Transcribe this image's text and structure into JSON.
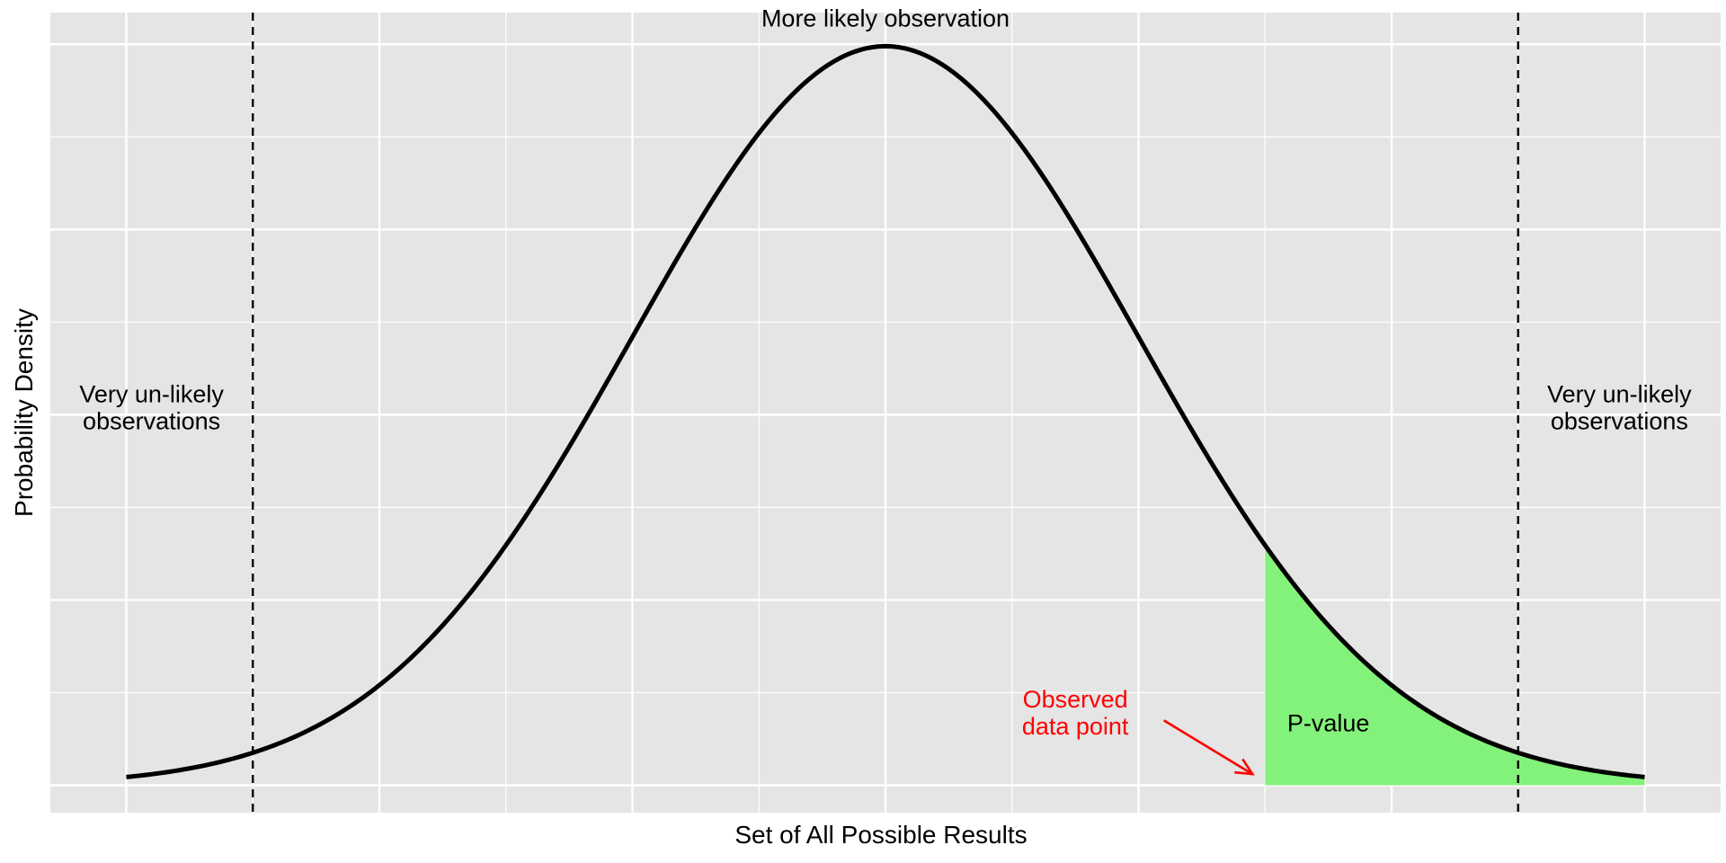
{
  "chart_data": {
    "type": "area",
    "title": "",
    "xlabel": "Set of All Possible Results",
    "ylabel": "Probability Density",
    "xlim": [
      -3.3,
      3.3
    ],
    "ylim": [
      -0.0148,
      0.4171
    ],
    "grid": true,
    "legend": "none",
    "background": "#e5e5e5",
    "grid_color": "#ffffff",
    "series": [
      {
        "kind": "normal-density",
        "mean": 0,
        "sd": 1,
        "x_range": [
          -3,
          3
        ],
        "color": "#000000"
      }
    ],
    "shaded_region": {
      "x_from": 1.5,
      "x_to": 3,
      "color": "#83f27a"
    },
    "reference_lines": [
      {
        "x": -2.5,
        "style": "dashed",
        "color": "#000000"
      },
      {
        "x": 2.5,
        "style": "dashed",
        "color": "#000000"
      }
    ],
    "annotations": [
      {
        "text": "More likely observation",
        "x": 0,
        "y": 0.4131,
        "color": "#000000"
      },
      {
        "text": "Very un-likely",
        "x": -2.9,
        "y": 0.2102,
        "color": "#000000"
      },
      {
        "text": "observations",
        "x": -2.9,
        "y": 0.1956,
        "color": "#000000"
      },
      {
        "text": "Very un-likely",
        "x": 2.9,
        "y": 0.2102,
        "color": "#000000"
      },
      {
        "text": "observations",
        "x": 2.9,
        "y": 0.1956,
        "color": "#000000"
      },
      {
        "text": "P-value",
        "x": 1.75,
        "y": 0.0325,
        "color": "#000000"
      },
      {
        "text": "Observed",
        "x": 0.75,
        "y": 0.0454,
        "color": "#ff0000"
      },
      {
        "text": "data point",
        "x": 0.75,
        "y": 0.0308,
        "color": "#ff0000"
      }
    ],
    "arrow": {
      "from": [
        1.1,
        0.035
      ],
      "to": [
        1.45,
        0.006
      ],
      "color": "#ff0000"
    }
  }
}
